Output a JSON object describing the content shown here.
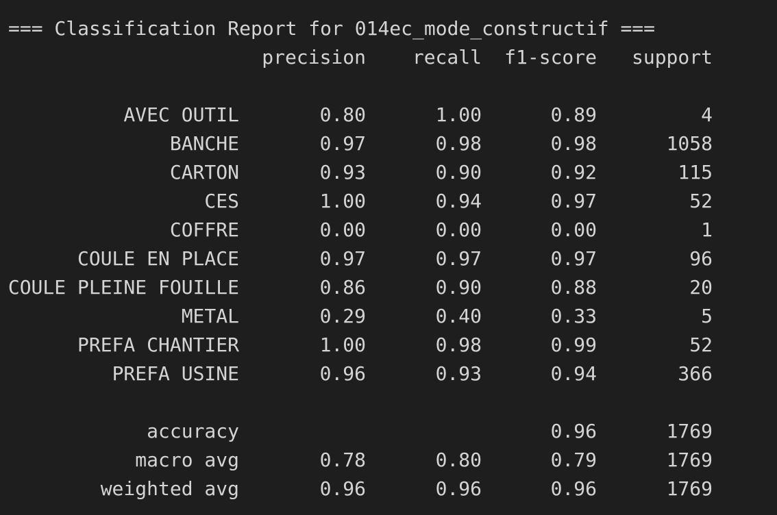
{
  "report": {
    "title": "=== Classification Report for 014ec_mode_constructif ===",
    "headers": {
      "precision": "precision",
      "recall": "recall",
      "f1": "f1-score",
      "support": "support"
    },
    "classes": [
      {
        "label": "AVEC OUTIL",
        "precision": "0.80",
        "recall": "1.00",
        "f1": "0.89",
        "support": "4"
      },
      {
        "label": "BANCHE",
        "precision": "0.97",
        "recall": "0.98",
        "f1": "0.98",
        "support": "1058"
      },
      {
        "label": "CARTON",
        "precision": "0.93",
        "recall": "0.90",
        "f1": "0.92",
        "support": "115"
      },
      {
        "label": "CES",
        "precision": "1.00",
        "recall": "0.94",
        "f1": "0.97",
        "support": "52"
      },
      {
        "label": "COFFRE",
        "precision": "0.00",
        "recall": "0.00",
        "f1": "0.00",
        "support": "1"
      },
      {
        "label": "COULE EN PLACE",
        "precision": "0.97",
        "recall": "0.97",
        "f1": "0.97",
        "support": "96"
      },
      {
        "label": "COULE PLEINE FOUILLE",
        "precision": "0.86",
        "recall": "0.90",
        "f1": "0.88",
        "support": "20"
      },
      {
        "label": "METAL",
        "precision": "0.29",
        "recall": "0.40",
        "f1": "0.33",
        "support": "5"
      },
      {
        "label": "PREFA CHANTIER",
        "precision": "1.00",
        "recall": "0.98",
        "f1": "0.99",
        "support": "52"
      },
      {
        "label": "PREFA USINE",
        "precision": "0.96",
        "recall": "0.93",
        "f1": "0.94",
        "support": "366"
      }
    ],
    "accuracy": {
      "label": "accuracy",
      "f1": "0.96",
      "support": "1769"
    },
    "macro_avg": {
      "label": "macro avg",
      "precision": "0.78",
      "recall": "0.80",
      "f1": "0.79",
      "support": "1769"
    },
    "weighted_avg": {
      "label": "weighted avg",
      "precision": "0.96",
      "recall": "0.96",
      "f1": "0.96",
      "support": "1769"
    }
  },
  "colors": {
    "background": "#1e1e1e",
    "text": "#d4d4d4"
  }
}
